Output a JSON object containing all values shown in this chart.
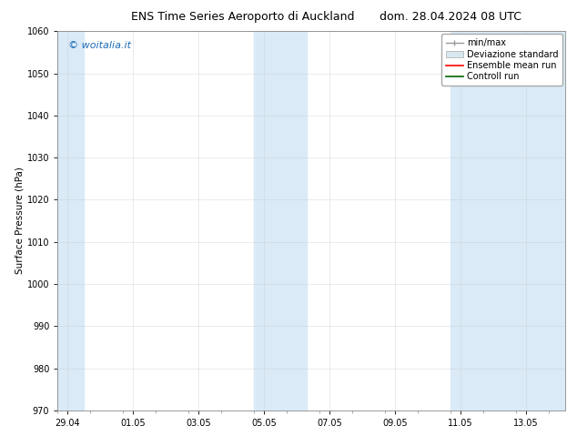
{
  "title_left": "ENS Time Series Aeroporto di Auckland",
  "title_right": "dom. 28.04.2024 08 UTC",
  "ylabel": "Surface Pressure (hPa)",
  "ylim": [
    970,
    1060
  ],
  "yticks": [
    970,
    980,
    990,
    1000,
    1010,
    1020,
    1030,
    1040,
    1050,
    1060
  ],
  "xtick_labels": [
    "29.04",
    "01.05",
    "03.05",
    "05.05",
    "07.05",
    "09.05",
    "11.05",
    "13.05"
  ],
  "watermark": "© woitalia.it",
  "watermark_color": "#1a6bb5",
  "bg_color": "#ffffff",
  "shaded_color": "#daeaf7",
  "title_fontsize": 9,
  "axis_fontsize": 7.5,
  "tick_fontsize": 7,
  "legend_fontsize": 7,
  "grid_color": "#cccccc",
  "spine_color": "#888888"
}
